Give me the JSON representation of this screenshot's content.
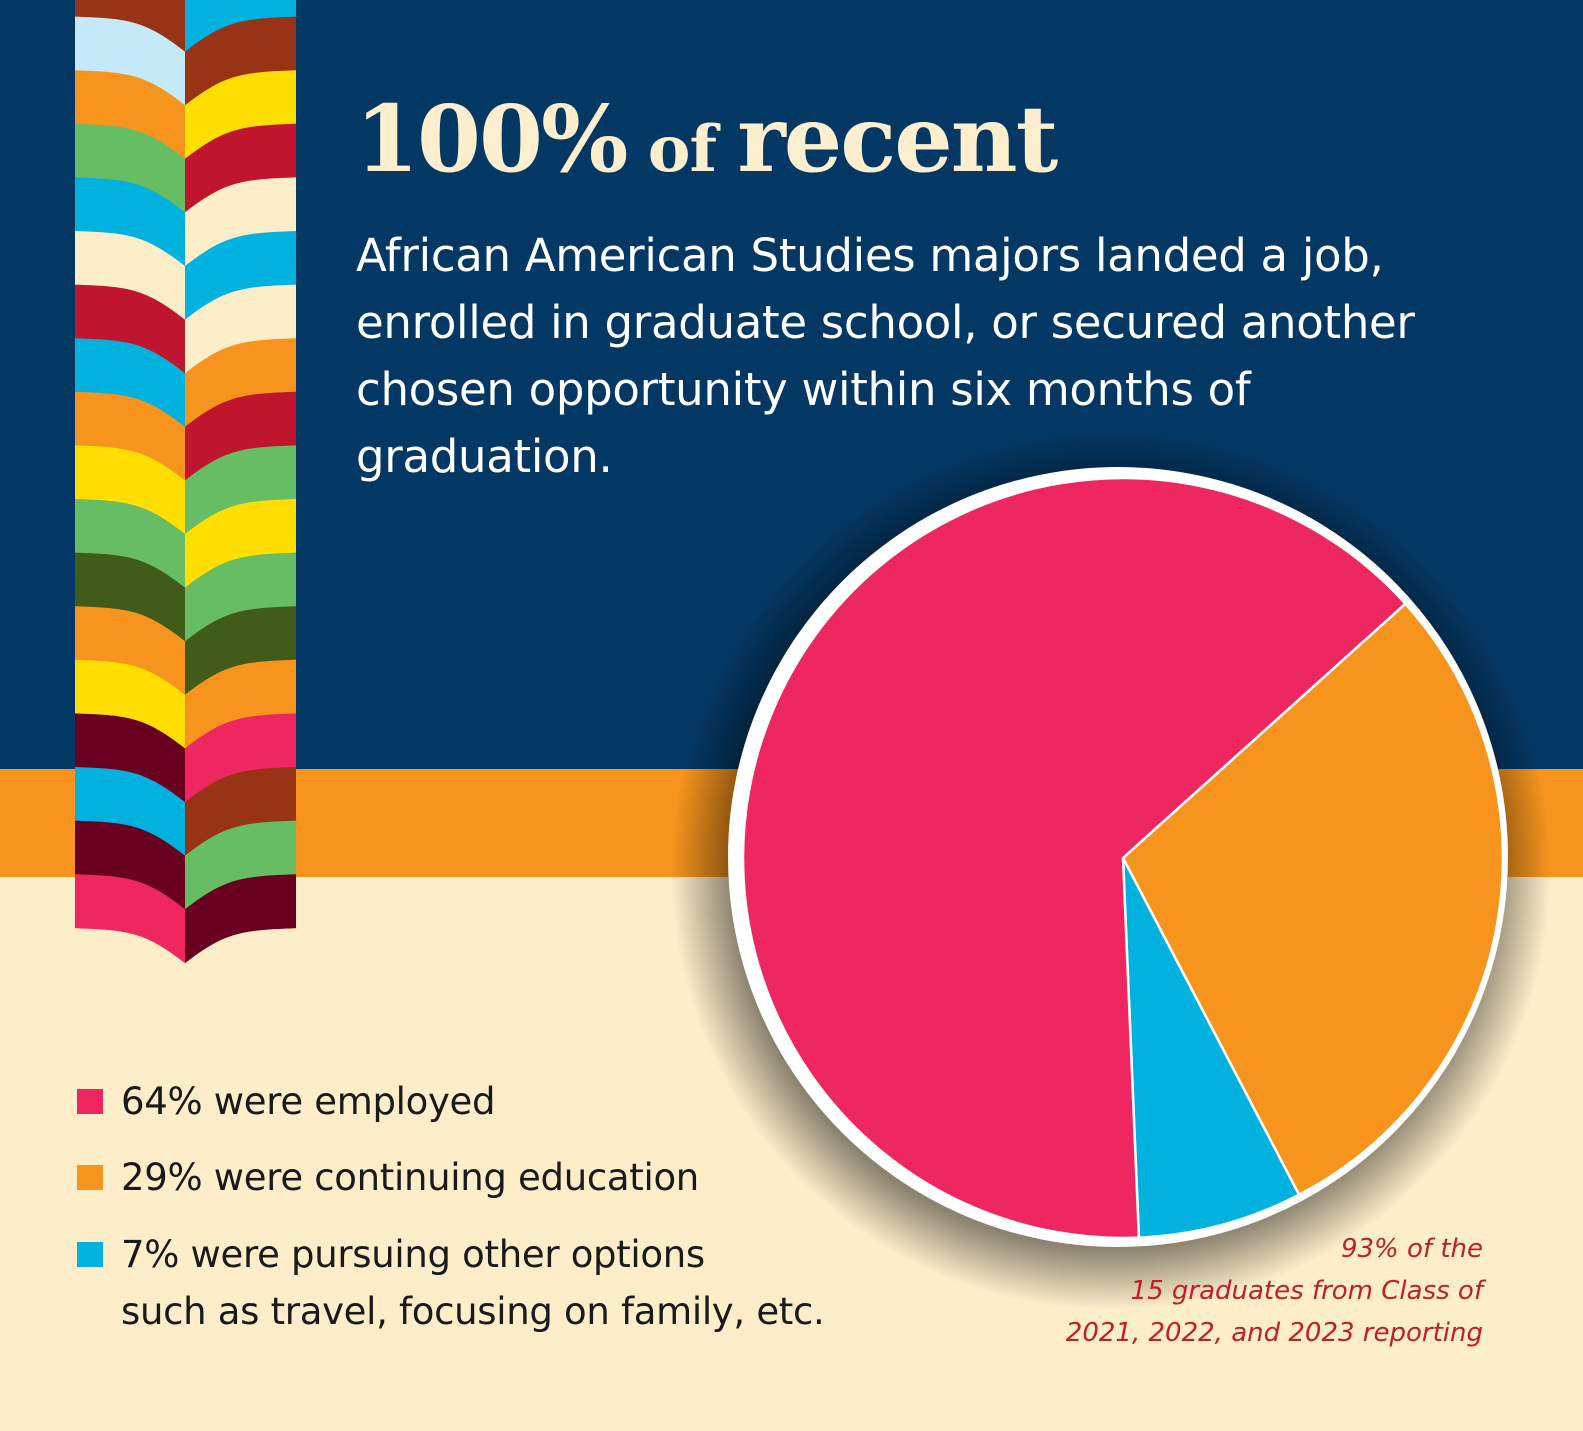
{
  "headline": {
    "big1": "100%",
    "small": " of ",
    "big2": "recent"
  },
  "subhead": "African American Studies majors landed a job, enrolled in graduate school, or secured another chosen opportunity within six months of graduation.",
  "colors": {
    "navy": "#043864",
    "orange_band": "#f7941d",
    "cream": "#fdedc9",
    "headline": "#fdefcd",
    "employed": "#ee2760",
    "education": "#f7941d",
    "other": "#00b2dd",
    "footnote": "#be1e2d"
  },
  "ribbon": {
    "left_colors": [
      "#983315",
      "#c4e9f8",
      "#f7941d",
      "#66bd63",
      "#00b2dd",
      "#fdedc9",
      "#c0152f",
      "#00b2dd",
      "#f7941d",
      "#ffde00",
      "#66bd63",
      "#415c18",
      "#f7941d",
      "#ffde00",
      "#6a0020",
      "#00b2dd",
      "#6a0020",
      "#ee2760"
    ],
    "right_colors": [
      "#00b2dd",
      "#983315",
      "#ffde00",
      "#c0152f",
      "#fdedc9",
      "#00b2dd",
      "#fdedc9",
      "#f7941d",
      "#c0152f",
      "#66bd63",
      "#ffde00",
      "#66bd63",
      "#415c18",
      "#f7941d",
      "#ee2760",
      "#983315",
      "#66bd63",
      "#6a0020"
    ]
  },
  "legend": [
    {
      "label": "64% were employed",
      "color": "#ee2760"
    },
    {
      "label": "29% were continuing education",
      "color": "#f7941d"
    },
    {
      "label": "7% were pursuing other options",
      "label2": "such as travel, focusing on family, etc.",
      "color": "#00b2dd"
    }
  ],
  "footnote": {
    "line1": "93% of the",
    "line2": "15 graduates from Class of",
    "line3": "2021, 2022, and 2023 reporting"
  },
  "chart_data": {
    "type": "pie",
    "title": "100% of recent African American Studies majors landed a job, enrolled in graduate school, or secured another chosen opportunity within six months of graduation.",
    "categories": [
      "were employed",
      "were continuing education",
      "were pursuing other options such as travel, focusing on family, etc."
    ],
    "values": [
      64,
      29,
      7
    ],
    "unit": "%",
    "colors": [
      "#ee2760",
      "#f7941d",
      "#00b2dd"
    ],
    "legend_position": "bottom-left",
    "annotation": "93% of the 15 graduates from Class of 2021, 2022, and 2023 reporting"
  }
}
